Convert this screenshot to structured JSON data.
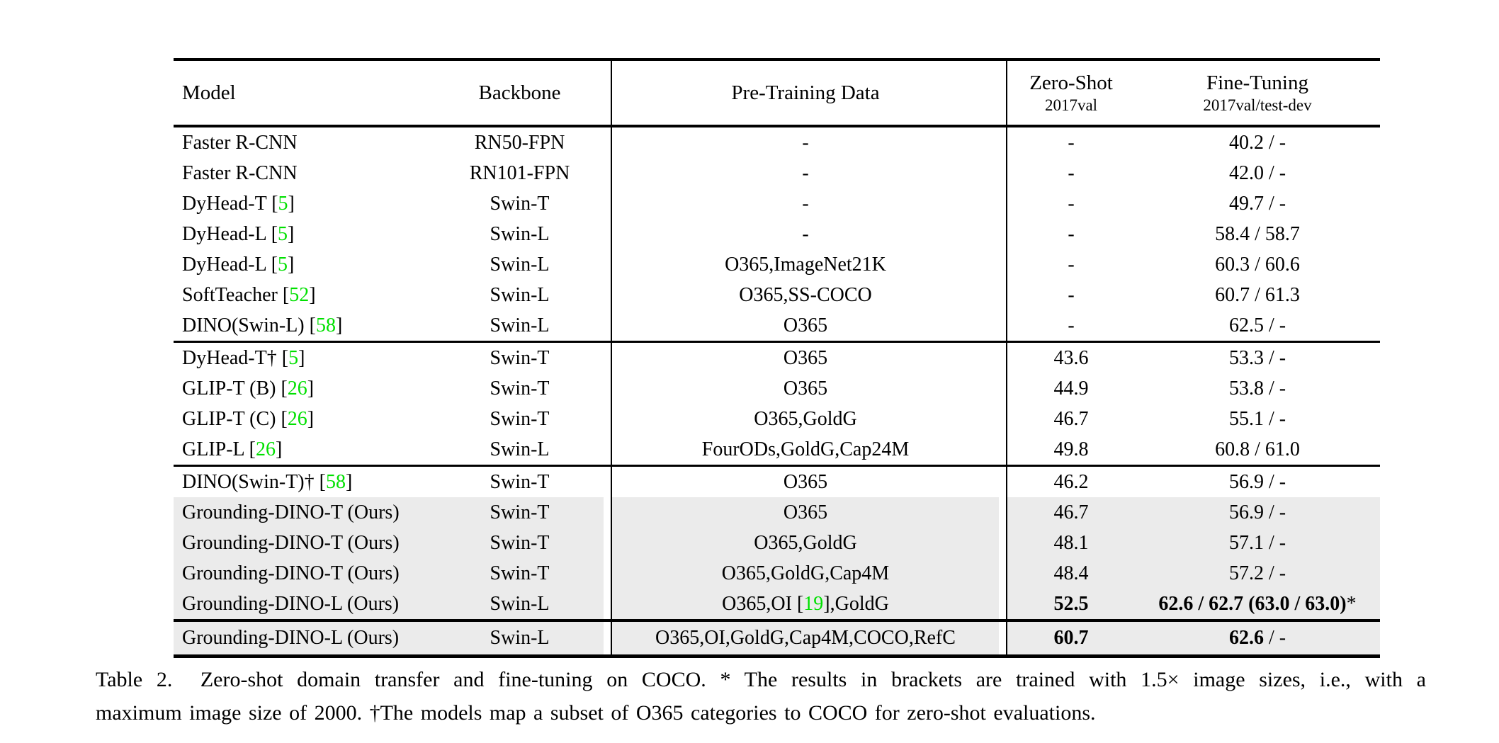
{
  "table": {
    "colors": {
      "ref_green": "#00e000",
      "row_highlight": "#ebebeb"
    },
    "header": {
      "model": "Model",
      "backbone": "Backbone",
      "pretrain": "Pre-Training Data",
      "zeroshot_line1": "Zero-Shot",
      "zeroshot_line2": "2017val",
      "finetune_line1": "Fine-Tuning",
      "finetune_line2": "2017val/test-dev"
    },
    "blocks": [
      {
        "rows": [
          {
            "model": "Faster R-CNN",
            "backbone": "RN50-FPN",
            "pretrain": "-",
            "zeroshot": "-",
            "finetune": "40.2 / -",
            "highlight": false
          },
          {
            "model": "Faster R-CNN",
            "backbone": "RN101-FPN",
            "pretrain": "-",
            "zeroshot": "-",
            "finetune": "42.0 / -",
            "highlight": false
          },
          {
            "model": [
              {
                "t": "DyHead-T "
              },
              {
                "ref": "5"
              }
            ],
            "backbone": "Swin-T",
            "pretrain": "-",
            "zeroshot": "-",
            "finetune": "49.7 / -",
            "highlight": false
          },
          {
            "model": [
              {
                "t": "DyHead-L "
              },
              {
                "ref": "5"
              }
            ],
            "backbone": "Swin-L",
            "pretrain": "-",
            "zeroshot": "-",
            "finetune": "58.4 / 58.7",
            "highlight": false
          },
          {
            "model": [
              {
                "t": "DyHead-L "
              },
              {
                "ref": "5"
              }
            ],
            "backbone": "Swin-L",
            "pretrain": "O365,ImageNet21K",
            "zeroshot": "-",
            "finetune": "60.3 / 60.6",
            "highlight": false
          },
          {
            "model": [
              {
                "t": "SoftTeacher "
              },
              {
                "ref": "52"
              }
            ],
            "backbone": "Swin-L",
            "pretrain": "O365,SS-COCO",
            "zeroshot": "-",
            "finetune": "60.7 / 61.3",
            "highlight": false
          },
          {
            "model": [
              {
                "t": "DINO(Swin-L) "
              },
              {
                "ref": "58"
              }
            ],
            "backbone": "Swin-L",
            "pretrain": "O365",
            "zeroshot": "-",
            "finetune": "62.5 / -",
            "highlight": false
          }
        ]
      },
      {
        "rows": [
          {
            "model": [
              {
                "t": "DyHead-T† "
              },
              {
                "ref": "5"
              }
            ],
            "backbone": "Swin-T",
            "pretrain": "O365",
            "zeroshot": "43.6",
            "finetune": "53.3 / -",
            "highlight": false
          },
          {
            "model": [
              {
                "t": "GLIP-T (B) "
              },
              {
                "ref": "26"
              }
            ],
            "backbone": "Swin-T",
            "pretrain": "O365",
            "zeroshot": "44.9",
            "finetune": "53.8 / -",
            "highlight": false
          },
          {
            "model": [
              {
                "t": "GLIP-T (C) "
              },
              {
                "ref": "26"
              }
            ],
            "backbone": "Swin-T",
            "pretrain": "O365,GoldG",
            "zeroshot": "46.7",
            "finetune": "55.1 / -",
            "highlight": false
          },
          {
            "model": [
              {
                "t": "GLIP-L "
              },
              {
                "ref": "26"
              }
            ],
            "backbone": "Swin-L",
            "pretrain": "FourODs,GoldG,Cap24M",
            "zeroshot": "49.8",
            "finetune": "60.8 / 61.0",
            "highlight": false
          }
        ]
      },
      {
        "rows": [
          {
            "model": [
              {
                "t": "DINO(Swin-T)† "
              },
              {
                "ref": "58"
              }
            ],
            "backbone": "Swin-T",
            "pretrain": "O365",
            "zeroshot": "46.2",
            "finetune": "56.9 / -",
            "highlight": false
          },
          {
            "model": "Grounding-DINO-T (Ours)",
            "backbone": "Swin-T",
            "pretrain": "O365",
            "zeroshot": "46.7",
            "finetune": "56.9 / -",
            "highlight": true
          },
          {
            "model": "Grounding-DINO-T (Ours)",
            "backbone": "Swin-T",
            "pretrain": "O365,GoldG",
            "zeroshot": "48.1",
            "finetune": "57.1 / -",
            "highlight": true
          },
          {
            "model": "Grounding-DINO-T (Ours)",
            "backbone": "Swin-T",
            "pretrain": "O365,GoldG,Cap4M",
            "zeroshot": "48.4",
            "finetune": "57.2 / -",
            "highlight": true
          },
          {
            "model": "Grounding-DINO-L (Ours)",
            "backbone": "Swin-L",
            "pretrain": [
              {
                "t": "O365,OI "
              },
              {
                "ref": "19"
              },
              {
                "t": ",GoldG"
              }
            ],
            "zeroshot": [
              {
                "t": "52.5",
                "b": true
              }
            ],
            "finetune": [
              {
                "t": "62.6 / 62.7 (63.0 / 63.0)",
                "b": true
              },
              {
                "t": "*"
              }
            ],
            "highlight": true
          }
        ]
      },
      {
        "rows": [
          {
            "model": "Grounding-DINO-L (Ours)",
            "backbone": "Swin-L",
            "pretrain": "O365,OI,GoldG,Cap4M,COCO,RefC",
            "zeroshot": [
              {
                "t": "60.7",
                "b": true
              }
            ],
            "finetune": [
              {
                "t": "62.6",
                "b": true
              },
              {
                "t": " / -"
              }
            ],
            "highlight": true
          }
        ]
      }
    ]
  },
  "caption": {
    "line1": "Table 2.  Zero-shot domain transfer and fine-tuning on COCO. * The results in brackets are trained with 1.5× image sizes, i.e., with a",
    "line2": "maximum image size of 2000. †The models map a subset of O365 categories to COCO for zero-shot evaluations."
  }
}
